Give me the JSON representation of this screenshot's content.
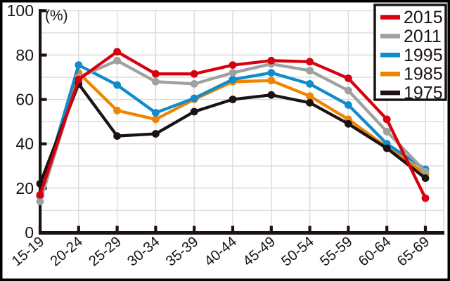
{
  "figure": {
    "percent_label": "(%)",
    "background": "#ffffff",
    "frame_color": "#000000",
    "grid_color": "#dadada",
    "axis_color": "#1a1311",
    "text_color": "#1a1311",
    "legend_border_color": "#1a1311",
    "legend_background": "#ffffff"
  },
  "chart_data": {
    "type": "line",
    "title": "",
    "xlabel": "",
    "ylabel": "(%)",
    "ylim": [
      0,
      100
    ],
    "ytick_step": 20,
    "grid_step": 10,
    "grid": true,
    "legend_position": "top-right",
    "categories": [
      "15-19",
      "20-24",
      "25-29",
      "30-34",
      "35-39",
      "40-44",
      "45-49",
      "50-54",
      "55-59",
      "60-64",
      "65-69"
    ],
    "yticks": [
      0,
      20,
      40,
      60,
      80,
      100
    ],
    "series": [
      {
        "name": "2015",
        "color": "#d7000f",
        "values": [
          17,
          69,
          81.5,
          71.5,
          71.5,
          75.5,
          77.5,
          77,
          69.5,
          51,
          15.5
        ]
      },
      {
        "name": "2011",
        "color": "#9fa0a0",
        "values": [
          14,
          70,
          77.5,
          68,
          67,
          72,
          76,
          73,
          64,
          45.5,
          27.5
        ]
      },
      {
        "name": "1995",
        "color": "#0e8ccc",
        "values": [
          16.5,
          75.5,
          66.5,
          54,
          60.5,
          69,
          72,
          67,
          57.5,
          40,
          28.5
        ]
      },
      {
        "name": "1985",
        "color": "#f08300",
        "values": [
          16.5,
          72,
          55,
          51,
          60,
          68,
          68.5,
          61.5,
          51,
          38.5,
          26.5
        ]
      },
      {
        "name": "1975",
        "color": "#1a1311",
        "values": [
          22,
          67,
          43.5,
          44.5,
          54.5,
          60,
          62,
          58.5,
          49,
          38,
          24.5
        ]
      }
    ],
    "legend_order": [
      "2015",
      "2011",
      "1995",
      "1985",
      "1975"
    ],
    "draw_order": [
      "1985",
      "1995",
      "2011",
      "1975",
      "2015"
    ]
  }
}
